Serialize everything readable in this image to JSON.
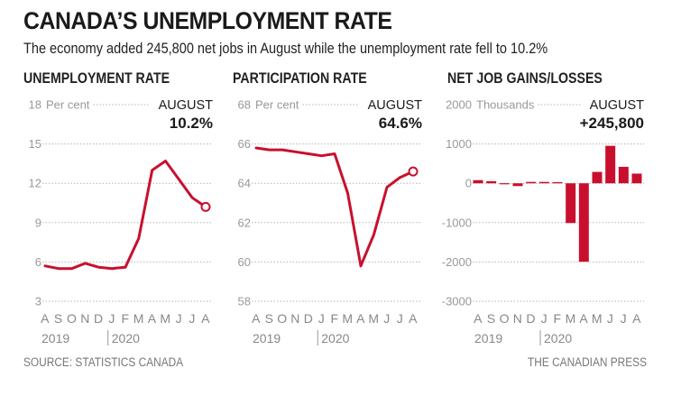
{
  "header": {
    "title": "CANADA’S UNEMPLOYMENT RATE",
    "subtitle": "The economy added 245,800 net jobs in August while the unemployment rate fell to 10.2%"
  },
  "footer": {
    "source": "SOURCE: STATISTICS CANADA",
    "credit": "THE CANADIAN PRESS"
  },
  "colors": {
    "accent": "#c8102e",
    "grid": "#b5b5b5",
    "muted_text": "#999999"
  },
  "chart_data": [
    {
      "type": "line",
      "title": "UNEMPLOYMENT RATE",
      "unit_label": "Per cent",
      "latest_label": "AUGUST",
      "latest_value": "10.2%",
      "x": [
        "A",
        "S",
        "O",
        "N",
        "D",
        "J",
        "F",
        "M",
        "A",
        "M",
        "J",
        "J",
        "A"
      ],
      "years": [
        "2019",
        "2020"
      ],
      "y_ticks": [
        3,
        6,
        9,
        12,
        15,
        18
      ],
      "ylim": [
        3,
        18
      ],
      "grid": true,
      "series": [
        {
          "name": "Unemployment rate",
          "values": [
            5.7,
            5.5,
            5.5,
            5.9,
            5.6,
            5.5,
            5.6,
            7.8,
            13.0,
            13.7,
            12.3,
            10.9,
            10.2
          ]
        }
      ]
    },
    {
      "type": "line",
      "title": "PARTICIPATION RATE",
      "unit_label": "Per cent",
      "latest_label": "AUGUST",
      "latest_value": "64.6%",
      "x": [
        "A",
        "S",
        "O",
        "N",
        "D",
        "J",
        "F",
        "M",
        "A",
        "M",
        "J",
        "J",
        "A"
      ],
      "years": [
        "2019",
        "2020"
      ],
      "y_ticks": [
        58,
        60,
        62,
        64,
        66,
        68
      ],
      "ylim": [
        58,
        68
      ],
      "grid": true,
      "series": [
        {
          "name": "Participation rate",
          "values": [
            65.8,
            65.7,
            65.7,
            65.6,
            65.5,
            65.4,
            65.5,
            63.5,
            59.8,
            61.4,
            63.8,
            64.3,
            64.6
          ]
        }
      ]
    },
    {
      "type": "bar",
      "title": "NET JOB GAINS/LOSSES",
      "unit_label": "Thousands",
      "latest_label": "AUGUST",
      "latest_value": "+245,800",
      "x": [
        "A",
        "S",
        "O",
        "N",
        "D",
        "J",
        "F",
        "M",
        "A",
        "M",
        "J",
        "J",
        "A"
      ],
      "years": [
        "2019",
        "2020"
      ],
      "y_ticks": [
        -3000,
        -2000,
        -1000,
        0,
        1000,
        2000
      ],
      "ylim": [
        -3000,
        2000
      ],
      "grid": true,
      "series": [
        {
          "name": "Net jobs (thousands)",
          "values": [
            81,
            54,
            2,
            -71,
            35,
            35,
            30,
            -1011,
            -1994,
            290,
            953,
            419,
            246
          ]
        }
      ]
    }
  ]
}
